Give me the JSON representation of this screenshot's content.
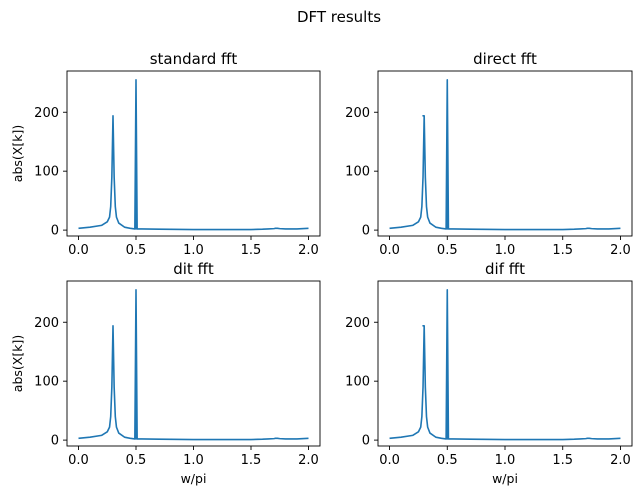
{
  "figure": {
    "suptitle": "DFT results"
  },
  "chart_data": [
    {
      "type": "line",
      "title": "standard fft",
      "xlabel": "",
      "ylabel": "abs(X[k])",
      "xlim": [
        -0.1,
        2.1
      ],
      "ylim": [
        -10,
        270
      ],
      "xticks": [
        "0.0",
        "0.5",
        "1.0",
        "1.5",
        "2.0"
      ],
      "yticks": [
        "0",
        "100",
        "200"
      ],
      "grid": false,
      "color": "#1f77b4",
      "series": [
        {
          "x": [
            0.0,
            0.1,
            0.2,
            0.25,
            0.27,
            0.28,
            0.29,
            0.3,
            0.31,
            0.32,
            0.33,
            0.35,
            0.4,
            0.45,
            0.49,
            0.5,
            0.5,
            0.5,
            0.51,
            0.55,
            0.7,
            1.0,
            1.3,
            1.5,
            1.6,
            1.65,
            1.7,
            1.71,
            1.72,
            1.73,
            1.75,
            1.8,
            1.9,
            2.0
          ],
          "y": [
            3,
            5,
            8,
            14,
            22,
            40,
            90,
            194,
            90,
            40,
            22,
            12,
            5,
            3,
            2,
            255,
            2,
            255,
            2,
            2,
            1.5,
            1,
            1,
            1,
            1.5,
            2,
            2.5,
            3,
            3,
            3,
            2.5,
            2,
            2,
            3
          ]
        }
      ]
    },
    {
      "type": "line",
      "title": "direct fft",
      "xlabel": "",
      "ylabel": "",
      "xlim": [
        -0.1,
        2.1
      ],
      "ylim": [
        -10,
        270
      ],
      "xticks": [
        "0.0",
        "0.5",
        "1.0",
        "1.5",
        "2.0"
      ],
      "yticks": [
        "0",
        "100",
        "200"
      ],
      "grid": false,
      "color": "#1f77b4",
      "series": [
        {
          "x": [
            0.0,
            0.1,
            0.2,
            0.25,
            0.27,
            0.28,
            0.29,
            0.3,
            0.29,
            0.3,
            0.31,
            0.32,
            0.33,
            0.35,
            0.4,
            0.45,
            0.49,
            0.5,
            0.5,
            0.5,
            0.51,
            0.55,
            0.7,
            1.0,
            1.3,
            1.5,
            1.6,
            1.65,
            1.7,
            1.71,
            1.72,
            1.73,
            1.75,
            1.8,
            1.9,
            2.0
          ],
          "y": [
            3,
            5,
            8,
            14,
            22,
            40,
            90,
            194,
            194,
            194,
            90,
            40,
            22,
            12,
            5,
            3,
            2,
            255,
            2,
            255,
            2,
            2,
            1.5,
            1,
            1,
            1,
            1.5,
            2,
            2.5,
            3,
            3,
            3,
            2.5,
            2,
            2,
            3
          ]
        }
      ]
    },
    {
      "type": "line",
      "title": "dit fft",
      "xlabel": "w/pi",
      "ylabel": "abs(X[k])",
      "xlim": [
        -0.1,
        2.1
      ],
      "ylim": [
        -10,
        270
      ],
      "xticks": [
        "0.0",
        "0.5",
        "1.0",
        "1.5",
        "2.0"
      ],
      "yticks": [
        "0",
        "100",
        "200"
      ],
      "grid": false,
      "color": "#1f77b4",
      "series": [
        {
          "x": [
            0.0,
            0.1,
            0.2,
            0.25,
            0.27,
            0.28,
            0.29,
            0.3,
            0.31,
            0.32,
            0.33,
            0.35,
            0.4,
            0.45,
            0.49,
            0.5,
            0.5,
            0.5,
            0.51,
            0.55,
            0.7,
            1.0,
            1.3,
            1.5,
            1.6,
            1.65,
            1.7,
            1.71,
            1.72,
            1.73,
            1.75,
            1.8,
            1.9,
            2.0
          ],
          "y": [
            3,
            5,
            8,
            14,
            22,
            40,
            90,
            194,
            90,
            40,
            22,
            12,
            5,
            3,
            2,
            255,
            2,
            255,
            2,
            2,
            1.5,
            1,
            1,
            1,
            1.5,
            2,
            2.5,
            3,
            3,
            3,
            2.5,
            2,
            2,
            3
          ]
        }
      ]
    },
    {
      "type": "line",
      "title": "dif fft",
      "xlabel": "w/pi",
      "ylabel": "",
      "xlim": [
        -0.1,
        2.1
      ],
      "ylim": [
        -10,
        270
      ],
      "xticks": [
        "0.0",
        "0.5",
        "1.0",
        "1.5",
        "2.0"
      ],
      "yticks": [
        "0",
        "100",
        "200"
      ],
      "grid": false,
      "color": "#1f77b4",
      "series": [
        {
          "x": [
            0.0,
            0.1,
            0.2,
            0.25,
            0.27,
            0.28,
            0.29,
            0.3,
            0.29,
            0.3,
            0.31,
            0.32,
            0.33,
            0.35,
            0.4,
            0.45,
            0.49,
            0.5,
            0.5,
            0.5,
            0.51,
            0.55,
            0.7,
            1.0,
            1.3,
            1.5,
            1.6,
            1.65,
            1.7,
            1.71,
            1.72,
            1.73,
            1.75,
            1.8,
            1.9,
            2.0
          ],
          "y": [
            3,
            5,
            8,
            14,
            22,
            40,
            90,
            194,
            194,
            194,
            90,
            40,
            22,
            12,
            5,
            3,
            2,
            255,
            2,
            255,
            2,
            2,
            1.5,
            1,
            1,
            1,
            1.5,
            2,
            2.5,
            3,
            3,
            3,
            2.5,
            2,
            2,
            3
          ]
        }
      ]
    }
  ]
}
